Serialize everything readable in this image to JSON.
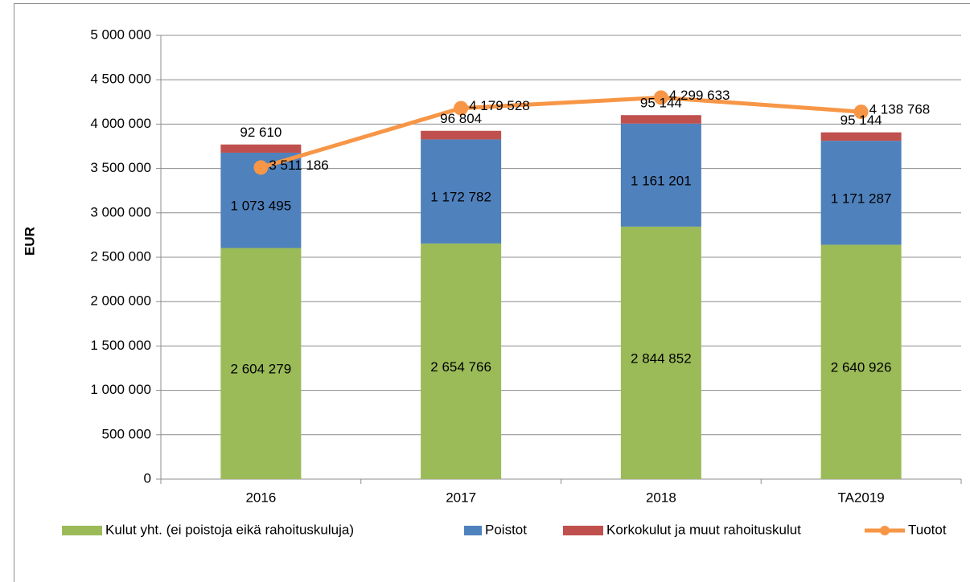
{
  "chart_data": {
    "type": "stacked_bar_line",
    "y_label": "EUR",
    "categories": [
      "2016",
      "2017",
      "2018",
      "TA2019"
    ],
    "ylim": [
      0,
      5000000
    ],
    "yticks": [
      0,
      {
        "value": 500000,
        "label": "500 000"
      },
      {
        "value": 1000000,
        "label": "1 000 000"
      },
      {
        "value": 1500000,
        "label": "1 500 000"
      },
      {
        "value": 2000000,
        "label": "2 000 000"
      },
      {
        "value": 2500000,
        "label": "2 500 000"
      },
      {
        "value": 3000000,
        "label": "3 000 000"
      },
      {
        "value": 3500000,
        "label": "3 500 000"
      },
      {
        "value": 4000000,
        "label": "4 000 000"
      },
      {
        "value": 4500000,
        "label": "4 500 000"
      },
      {
        "value": 5000000,
        "label": "5 000 000"
      }
    ],
    "grid": true,
    "legend": "bottom",
    "series": [
      {
        "name": "Kulut yht. (ei poistoja eikä rahoituskuluja)",
        "kind": "bar",
        "color": "#9bbb59",
        "values": [
          2604279,
          2654766,
          2844852,
          2640926
        ],
        "value_labels": [
          "2 604 279",
          "2 654 766",
          "2 844 852",
          "2 640 926"
        ]
      },
      {
        "name": "Poistot",
        "kind": "bar",
        "color": "#4f81bd",
        "values": [
          1073495,
          1172782,
          1161201,
          1171287
        ],
        "value_labels": [
          "1 073 495",
          "1 172 782",
          "1 161 201",
          "1 171 287"
        ]
      },
      {
        "name": "Korkokulut ja muut rahoituskulut",
        "kind": "bar",
        "color": "#c0504d",
        "values": [
          92610,
          96804,
          95144,
          95144
        ],
        "value_labels": [
          "92 610",
          "96 804",
          "95 144",
          "95 144"
        ]
      },
      {
        "name": "Tuotot",
        "kind": "line",
        "color": "#f79646",
        "values": [
          3511186,
          4179528,
          4299633,
          4138768
        ],
        "value_labels": [
          "3 511 186",
          "4 179 528",
          "4 299 633",
          "4 138 768"
        ]
      }
    ]
  }
}
